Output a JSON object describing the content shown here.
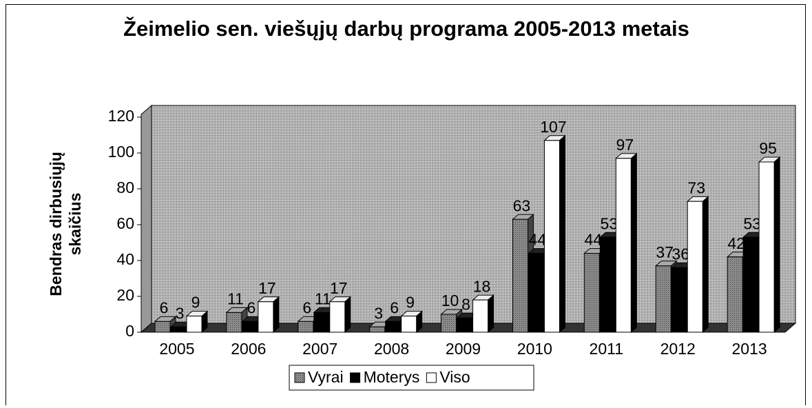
{
  "chart_data": {
    "type": "bar3d",
    "title": "Žeimelio sen. viešųjų darbų programa 2005-2013 metais",
    "y_label": "Bendras dirbusiųjų skaičius",
    "categories": [
      "2005",
      "2006",
      "2007",
      "2008",
      "2009",
      "2010",
      "2011",
      "2012",
      "2013"
    ],
    "series": [
      {
        "name": "Vyrai",
        "color": "#7a7a7a",
        "values": [
          6,
          11,
          6,
          3,
          10,
          63,
          44,
          37,
          42
        ]
      },
      {
        "name": "Moterys",
        "color": "#000000",
        "values": [
          3,
          6,
          11,
          6,
          8,
          44,
          53,
          36,
          53
        ]
      },
      {
        "name": "Viso",
        "color": "#ffffff",
        "values": [
          9,
          17,
          17,
          9,
          18,
          107,
          97,
          73,
          95
        ]
      }
    ],
    "ylim": [
      0,
      120
    ],
    "yticks": [
      0,
      20,
      40,
      60,
      80,
      100,
      120
    ],
    "legend": "bottom"
  }
}
